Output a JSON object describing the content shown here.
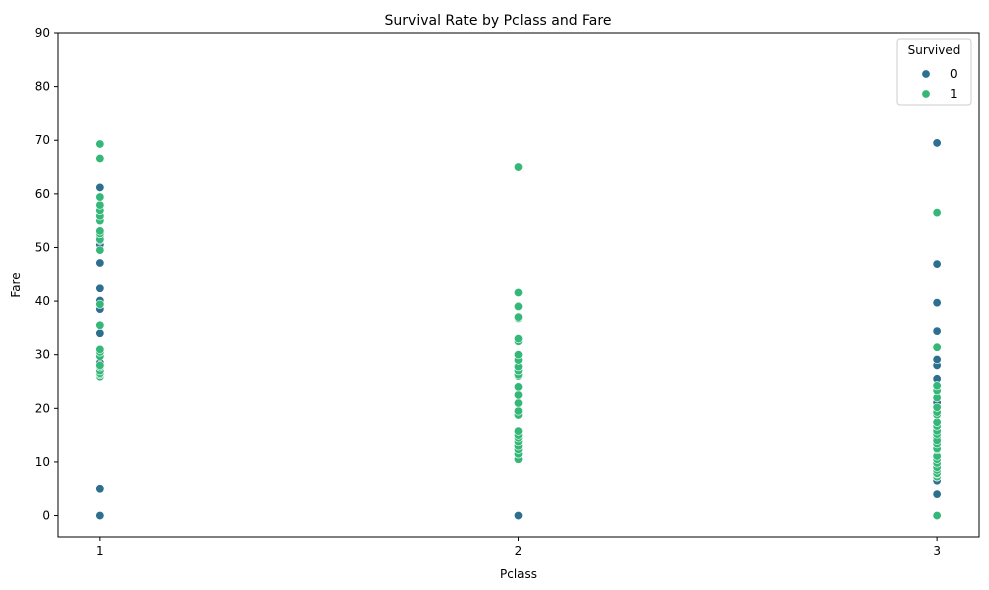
{
  "chart_data": {
    "type": "scatter",
    "title": "Survival Rate by Pclass and Fare",
    "xlabel": "Pclass",
    "ylabel": "Fare",
    "xlim": [
      0.9,
      3.1
    ],
    "ylim": [
      -4,
      90
    ],
    "xticks": [
      1,
      2,
      3
    ],
    "xtick_labels": [
      "1",
      "2",
      "3"
    ],
    "yticks": [
      0,
      10,
      20,
      30,
      40,
      50,
      60,
      70,
      80,
      90
    ],
    "ytick_labels": [
      "0",
      "10",
      "20",
      "30",
      "40",
      "50",
      "60",
      "70",
      "80",
      "90"
    ],
    "grid": false,
    "legend": {
      "title": "Survived",
      "placement": "top-right",
      "entries": [
        "0",
        "1"
      ]
    },
    "series": [
      {
        "name": "0",
        "color": "#2d6f8e",
        "points": [
          {
            "x": 1,
            "y": 0
          },
          {
            "x": 1,
            "y": 5.0
          },
          {
            "x": 1,
            "y": 26.5
          },
          {
            "x": 1,
            "y": 27.7
          },
          {
            "x": 1,
            "y": 28.5
          },
          {
            "x": 1,
            "y": 30.0
          },
          {
            "x": 1,
            "y": 34.0
          },
          {
            "x": 1,
            "y": 35.5
          },
          {
            "x": 1,
            "y": 38.5
          },
          {
            "x": 1,
            "y": 39.6
          },
          {
            "x": 1,
            "y": 40.1
          },
          {
            "x": 1,
            "y": 42.4
          },
          {
            "x": 1,
            "y": 47.1
          },
          {
            "x": 1,
            "y": 49.5
          },
          {
            "x": 1,
            "y": 50.5
          },
          {
            "x": 1,
            "y": 51.3
          },
          {
            "x": 1,
            "y": 52.0
          },
          {
            "x": 1,
            "y": 53.1
          },
          {
            "x": 1,
            "y": 61.2
          },
          {
            "x": 2,
            "y": 0
          },
          {
            "x": 2,
            "y": 10.5
          },
          {
            "x": 2,
            "y": 13.0
          },
          {
            "x": 2,
            "y": 15.5
          },
          {
            "x": 2,
            "y": 21.0
          },
          {
            "x": 2,
            "y": 26.0
          },
          {
            "x": 3,
            "y": 4.0
          },
          {
            "x": 3,
            "y": 6.5
          },
          {
            "x": 3,
            "y": 7.2
          },
          {
            "x": 3,
            "y": 7.8
          },
          {
            "x": 3,
            "y": 8.05
          },
          {
            "x": 3,
            "y": 9.5
          },
          {
            "x": 3,
            "y": 14.5
          },
          {
            "x": 3,
            "y": 16.1
          },
          {
            "x": 3,
            "y": 21.1
          },
          {
            "x": 3,
            "y": 25.5
          },
          {
            "x": 3,
            "y": 28.0
          },
          {
            "x": 3,
            "y": 29.1
          },
          {
            "x": 3,
            "y": 34.4
          },
          {
            "x": 3,
            "y": 39.7
          },
          {
            "x": 3,
            "y": 46.9
          },
          {
            "x": 3,
            "y": 69.5
          }
        ]
      },
      {
        "name": "1",
        "color": "#35b779",
        "points": [
          {
            "x": 1,
            "y": 25.9
          },
          {
            "x": 1,
            "y": 26.3
          },
          {
            "x": 1,
            "y": 26.55
          },
          {
            "x": 1,
            "y": 27.0
          },
          {
            "x": 1,
            "y": 27.72
          },
          {
            "x": 1,
            "y": 28.0
          },
          {
            "x": 1,
            "y": 29.7
          },
          {
            "x": 1,
            "y": 30.5
          },
          {
            "x": 1,
            "y": 31.0
          },
          {
            "x": 1,
            "y": 35.5
          },
          {
            "x": 1,
            "y": 39.4
          },
          {
            "x": 1,
            "y": 49.5
          },
          {
            "x": 1,
            "y": 51.5
          },
          {
            "x": 1,
            "y": 52.6
          },
          {
            "x": 1,
            "y": 53.1
          },
          {
            "x": 1,
            "y": 55.0
          },
          {
            "x": 1,
            "y": 55.9
          },
          {
            "x": 1,
            "y": 56.9
          },
          {
            "x": 1,
            "y": 57.9
          },
          {
            "x": 1,
            "y": 59.4
          },
          {
            "x": 1,
            "y": 66.6
          },
          {
            "x": 1,
            "y": 69.3
          },
          {
            "x": 2,
            "y": 10.5
          },
          {
            "x": 2,
            "y": 11.5
          },
          {
            "x": 2,
            "y": 12.35
          },
          {
            "x": 2,
            "y": 13.0
          },
          {
            "x": 2,
            "y": 13.8
          },
          {
            "x": 2,
            "y": 14.5
          },
          {
            "x": 2,
            "y": 15.0
          },
          {
            "x": 2,
            "y": 15.75
          },
          {
            "x": 2,
            "y": 18.75
          },
          {
            "x": 2,
            "y": 19.5
          },
          {
            "x": 2,
            "y": 21.0
          },
          {
            "x": 2,
            "y": 22.5
          },
          {
            "x": 2,
            "y": 24.0
          },
          {
            "x": 2,
            "y": 26.0
          },
          {
            "x": 2,
            "y": 26.25
          },
          {
            "x": 2,
            "y": 27.0
          },
          {
            "x": 2,
            "y": 27.75
          },
          {
            "x": 2,
            "y": 29.0
          },
          {
            "x": 2,
            "y": 30.0
          },
          {
            "x": 2,
            "y": 32.5
          },
          {
            "x": 2,
            "y": 33.0
          },
          {
            "x": 2,
            "y": 36.75
          },
          {
            "x": 2,
            "y": 37.0
          },
          {
            "x": 2,
            "y": 39.0
          },
          {
            "x": 2,
            "y": 41.6
          },
          {
            "x": 2,
            "y": 65.0
          },
          {
            "x": 3,
            "y": 0
          },
          {
            "x": 3,
            "y": 7.25
          },
          {
            "x": 3,
            "y": 7.75
          },
          {
            "x": 3,
            "y": 7.9
          },
          {
            "x": 3,
            "y": 8.5
          },
          {
            "x": 3,
            "y": 9.0
          },
          {
            "x": 3,
            "y": 9.8
          },
          {
            "x": 3,
            "y": 10.5
          },
          {
            "x": 3,
            "y": 11.1
          },
          {
            "x": 3,
            "y": 12.3
          },
          {
            "x": 3,
            "y": 12.5
          },
          {
            "x": 3,
            "y": 13.4
          },
          {
            "x": 3,
            "y": 14.0
          },
          {
            "x": 3,
            "y": 15.2
          },
          {
            "x": 3,
            "y": 15.8
          },
          {
            "x": 3,
            "y": 16.7
          },
          {
            "x": 3,
            "y": 17.4
          },
          {
            "x": 3,
            "y": 18.8
          },
          {
            "x": 3,
            "y": 19.3
          },
          {
            "x": 3,
            "y": 20.2
          },
          {
            "x": 3,
            "y": 22.0
          },
          {
            "x": 3,
            "y": 23.3
          },
          {
            "x": 3,
            "y": 24.2
          },
          {
            "x": 3,
            "y": 31.4
          },
          {
            "x": 3,
            "y": 56.5
          }
        ]
      }
    ]
  }
}
